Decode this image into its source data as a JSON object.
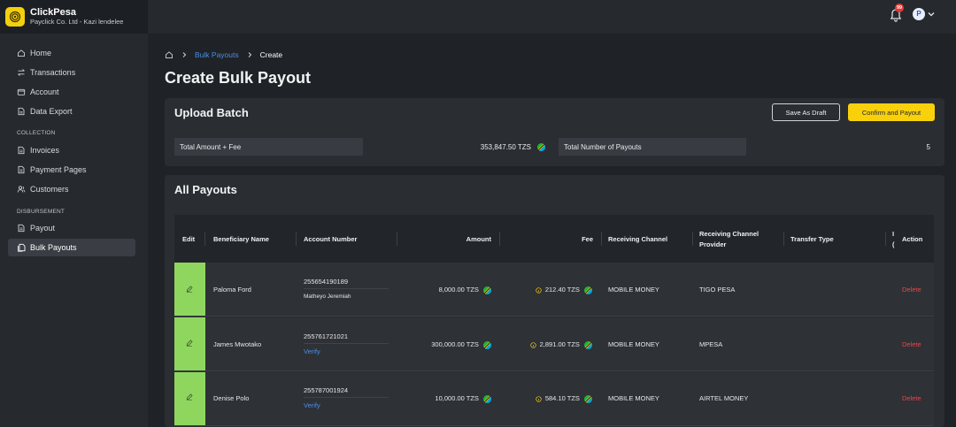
{
  "brand": {
    "name": "ClickPesa",
    "org": "Payclick Co. Ltd - Kazi lendelee"
  },
  "header": {
    "notification_count": "99",
    "avatar_initial": "P"
  },
  "sidebar": {
    "items": [
      {
        "label": "Home",
        "icon": "home-icon"
      },
      {
        "label": "Transactions",
        "icon": "transfer-arrows-icon"
      },
      {
        "label": "Account",
        "icon": "wallet-icon"
      },
      {
        "label": "Data Export",
        "icon": "document-export-icon"
      }
    ],
    "collection_title": "COLLECTION",
    "collection_items": [
      {
        "label": "Invoices",
        "icon": "document-icon"
      },
      {
        "label": "Payment Pages",
        "icon": "document-icon"
      },
      {
        "label": "Customers",
        "icon": "users-icon"
      }
    ],
    "disbursement_title": "DISBURSEMENT",
    "disbursement_items": [
      {
        "label": "Payout",
        "icon": "document-icon"
      },
      {
        "label": "Bulk Payouts",
        "icon": "bulk-payout-icon",
        "active": true
      }
    ]
  },
  "breadcrumb": {
    "parent": "Bulk Payouts",
    "current": "Create"
  },
  "page_title": "Create Bulk Payout",
  "upload_batch": {
    "title": "Upload Batch",
    "save_draft_label": "Save As Draft",
    "confirm_label": "Confirm and Payout",
    "total_amount_label": "Total Amount + Fee",
    "total_amount_value": "353,847.50 TZS",
    "total_payouts_label": "Total Number of Payouts",
    "total_payouts_value": "5"
  },
  "payouts": {
    "title": "All Payouts",
    "columns": {
      "edit": "Edit",
      "beneficiary": "Beneficiary Name",
      "account": "Account Number",
      "amount": "Amount",
      "fee": "Fee",
      "channel": "Receiving Channel",
      "provider_1": "Receiving Channel",
      "provider_2": "Provider",
      "transfer_type": "Transfer Type",
      "truncated_1": "I",
      "truncated_2": "(",
      "action": "Action"
    },
    "rows": [
      {
        "name": "Paloma Ford",
        "account": "255654190189",
        "account_sub": "Matheyo Jeremiah",
        "amount": "8,000.00 TZS",
        "fee": "212.40 TZS",
        "channel": "MOBILE MONEY",
        "provider": "TIGO PESA",
        "transfer_type": "",
        "action": "Delete"
      },
      {
        "name": "James Mwotako",
        "account": "255761721021",
        "account_sub": "Verify",
        "amount": "300,000.00 TZS",
        "fee": "2,891.00 TZS",
        "channel": "MOBILE MONEY",
        "provider": "MPESA",
        "transfer_type": "",
        "action": "Delete"
      },
      {
        "name": "Denise Polo",
        "account": "255787001924",
        "account_sub": "Verify",
        "amount": "10,000.00 TZS",
        "fee": "584.10 TZS",
        "channel": "MOBILE MONEY",
        "provider": "AIRTEL MONEY",
        "transfer_type": "",
        "action": "Delete"
      }
    ]
  },
  "colors": {
    "accent_yellow": "#f8d10c",
    "link_blue": "#4a8fe7",
    "delete_red": "#e5484d",
    "edit_green": "#8fd65f"
  }
}
